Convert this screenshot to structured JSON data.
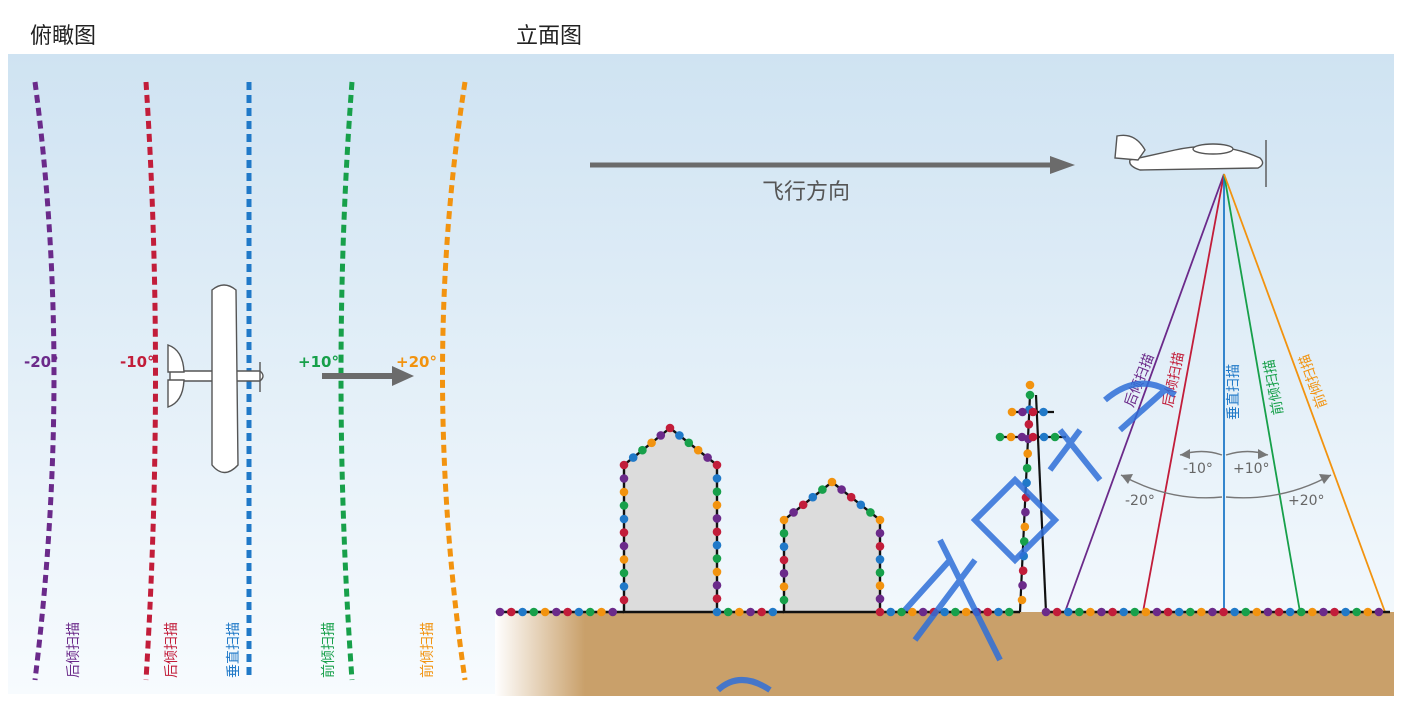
{
  "panels": {
    "left_title": "俯瞰图",
    "right_title": "立面图"
  },
  "top_view": {
    "lines": [
      {
        "angle_label": "-20°",
        "scan_label": "后倾扫描",
        "color": "#6b2a8a"
      },
      {
        "angle_label": "-10°",
        "scan_label": "后倾扫描",
        "color": "#c21d3a"
      },
      {
        "angle_label": "",
        "scan_label": "垂直扫描",
        "color": "#2079c8"
      },
      {
        "angle_label": "+10°",
        "scan_label": "前倾扫描",
        "color": "#17a04a"
      },
      {
        "angle_label": "+20°",
        "scan_label": "前倾扫描",
        "color": "#f2930f"
      }
    ]
  },
  "elevation_view": {
    "flight_direction": "飞行方向",
    "beams": [
      {
        "label": "后倾扫描",
        "color": "#6b2a8a"
      },
      {
        "label": "后倾扫描",
        "color": "#c21d3a"
      },
      {
        "label": "垂直扫描",
        "color": "#2079c8"
      },
      {
        "label": "前倾扫描",
        "color": "#17a04a"
      },
      {
        "label": "前倾扫描",
        "color": "#f2930f"
      }
    ],
    "angle_labels": {
      "minus10": "-10°",
      "plus10": "+10°",
      "minus20": "-20°",
      "plus20": "+20°"
    }
  },
  "colors": {
    "sky_top": "#cfe3f2",
    "ground": "#c9a06a",
    "arrow": "#6b6b6b",
    "building": "#dcdcdc",
    "watermark": "#2f6fd8"
  }
}
